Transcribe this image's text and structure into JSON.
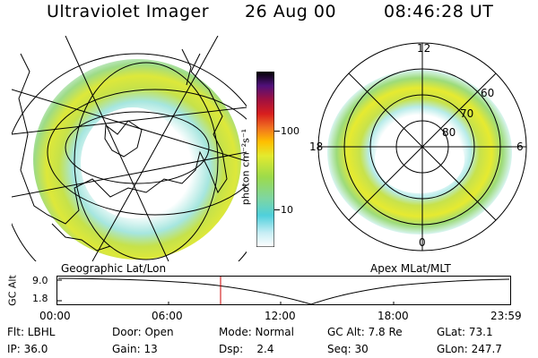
{
  "header": {
    "instrument": "Ultraviolet Imager",
    "date": "26 Aug 00",
    "time": "08:46:28 UT"
  },
  "colorbar": {
    "unit_label": "photon cm⁻²s⁻¹",
    "ticks": [
      "100",
      "10"
    ]
  },
  "geo_panel": {
    "label": "Geographic Lat/Lon"
  },
  "apex_panel": {
    "label": "Apex MLat/MLT",
    "mlt_labels": {
      "top": "12",
      "left": "18",
      "right": "6",
      "bottom": "0"
    },
    "lat_labels": [
      "60",
      "70",
      "80"
    ]
  },
  "altitude_plot": {
    "ylabel": "GC Alt",
    "yticks": [
      "9.0",
      "1.8"
    ],
    "xticks": [
      "00:00",
      "06:00",
      "12:00",
      "18:00",
      "23:59"
    ],
    "cursor_time": "08:46:28"
  },
  "status": {
    "row1": [
      "Flt: LBHL",
      "Door: Open",
      "Mode: Normal",
      "GC Alt: 7.8 Re",
      "GLat: 73.1"
    ],
    "row2": [
      "IP: 36.0",
      "Gain: 13",
      "Dsp:    2.4",
      "Seq: 30",
      "GLon: 247.7"
    ]
  },
  "colors": {
    "background": "#ffffff",
    "text": "#000000",
    "cursor": "#cc0000"
  }
}
